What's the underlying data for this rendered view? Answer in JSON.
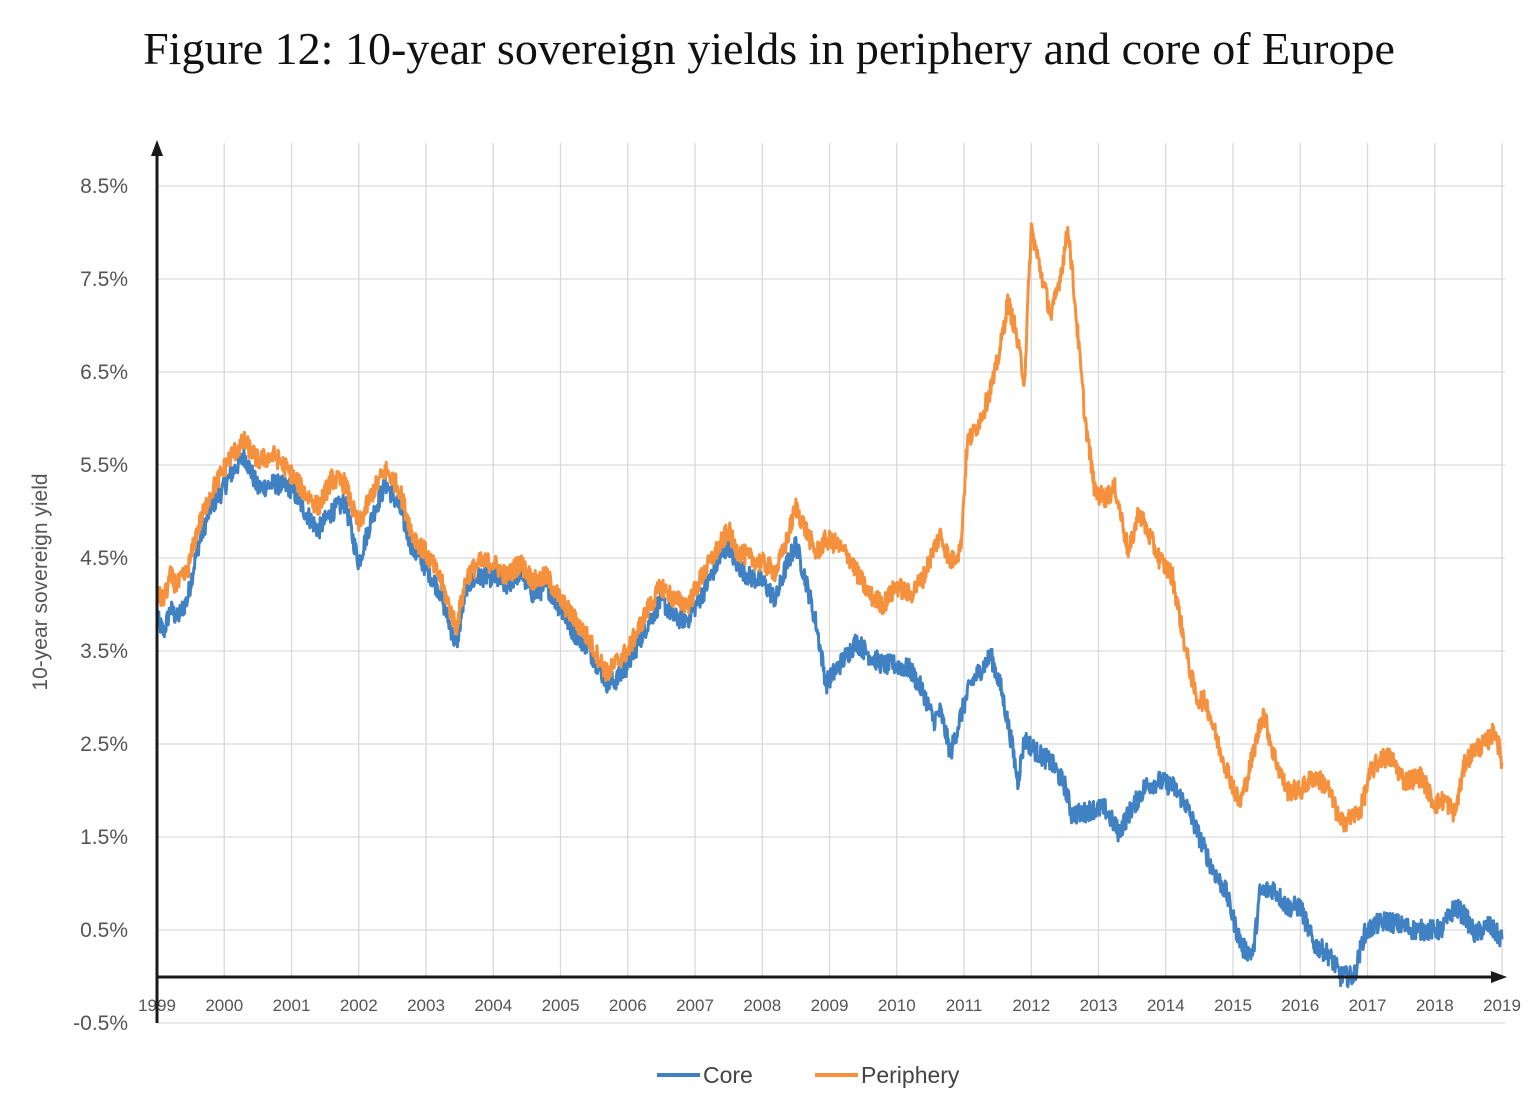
{
  "chart_data": {
    "type": "line",
    "title": "Figure 12:  10-year sovereign yields in periphery and core of Europe",
    "ylabel": "10-year sovereign yield",
    "xlabel": "",
    "xlim": [
      1999,
      2019
    ],
    "ylim": [
      -0.5,
      8.5
    ],
    "y_ticks": [
      "8.5%",
      "7.5%",
      "6.5%",
      "5.5%",
      "4.5%",
      "3.5%",
      "2.5%",
      "1.5%",
      "0.5%",
      "-0.5%"
    ],
    "x_ticks": [
      "1999",
      "2000",
      "2001",
      "2002",
      "2003",
      "2004",
      "2005",
      "2006",
      "2007",
      "2008",
      "2009",
      "2010",
      "2011",
      "2012",
      "2013",
      "2014",
      "2015",
      "2016",
      "2017",
      "2018",
      "2019"
    ],
    "grid": true,
    "legend": "bottom-center",
    "series": [
      {
        "name": "Core",
        "color": "#3F81C2",
        "x": [
          1999.0,
          1999.1,
          1999.2,
          1999.3,
          1999.45,
          1999.6,
          1999.8,
          1999.95,
          2000.1,
          2000.3,
          2000.5,
          2000.75,
          2001.0,
          2001.2,
          2001.4,
          2001.6,
          2001.8,
          2001.9,
          2002.0,
          2002.2,
          2002.4,
          2002.6,
          2002.8,
          2003.0,
          2003.2,
          2003.45,
          2003.6,
          2003.8,
          2004.0,
          2004.2,
          2004.4,
          2004.6,
          2004.8,
          2005.0,
          2005.2,
          2005.4,
          2005.7,
          2005.85,
          2006.0,
          2006.3,
          2006.5,
          2006.7,
          2006.9,
          2007.1,
          2007.3,
          2007.5,
          2007.6,
          2007.8,
          2008.0,
          2008.2,
          2008.35,
          2008.5,
          2008.65,
          2008.8,
          2008.95,
          2009.1,
          2009.3,
          2009.4,
          2009.6,
          2009.8,
          2010.0,
          2010.2,
          2010.4,
          2010.55,
          2010.65,
          2010.8,
          2010.95,
          2011.1,
          2011.25,
          2011.4,
          2011.55,
          2011.7,
          2011.8,
          2011.9,
          2012.1,
          2012.3,
          2012.5,
          2012.6,
          2012.75,
          2012.9,
          2013.1,
          2013.3,
          2013.45,
          2013.7,
          2013.9,
          2014.1,
          2014.3,
          2014.5,
          2014.7,
          2014.9,
          2015.05,
          2015.15,
          2015.3,
          2015.4,
          2015.6,
          2015.8,
          2016.0,
          2016.2,
          2016.4,
          2016.5,
          2016.6,
          2016.8,
          2016.95,
          2017.1,
          2017.3,
          2017.5,
          2017.7,
          2017.9,
          2018.1,
          2018.3,
          2018.45,
          2018.6,
          2018.8,
          2019.0
        ],
        "values": [
          3.85,
          3.7,
          3.95,
          3.85,
          4.05,
          4.6,
          5.05,
          5.2,
          5.4,
          5.6,
          5.25,
          5.3,
          5.25,
          5.0,
          4.8,
          5.0,
          5.1,
          4.75,
          4.45,
          4.95,
          5.3,
          5.05,
          4.6,
          4.4,
          4.15,
          3.55,
          4.2,
          4.3,
          4.3,
          4.2,
          4.35,
          4.1,
          4.2,
          3.95,
          3.7,
          3.55,
          3.15,
          3.2,
          3.35,
          3.8,
          4.05,
          3.85,
          3.85,
          4.1,
          4.4,
          4.65,
          4.45,
          4.3,
          4.25,
          4.05,
          4.4,
          4.65,
          4.25,
          3.8,
          3.15,
          3.3,
          3.5,
          3.6,
          3.45,
          3.35,
          3.35,
          3.3,
          3.05,
          2.75,
          2.85,
          2.4,
          2.8,
          3.15,
          3.3,
          3.45,
          3.1,
          2.55,
          2.1,
          2.55,
          2.4,
          2.3,
          2.05,
          1.75,
          1.75,
          1.8,
          1.8,
          1.55,
          1.75,
          2.05,
          2.1,
          2.05,
          1.85,
          1.5,
          1.15,
          0.9,
          0.5,
          0.3,
          0.25,
          0.9,
          0.95,
          0.75,
          0.75,
          0.35,
          0.25,
          0.15,
          0.0,
          0.0,
          0.45,
          0.55,
          0.6,
          0.55,
          0.5,
          0.5,
          0.5,
          0.75,
          0.65,
          0.45,
          0.55,
          0.4
        ]
      },
      {
        "name": "Periphery",
        "color": "#F5913D",
        "x": [
          1999.0,
          1999.1,
          1999.2,
          1999.3,
          1999.45,
          1999.6,
          1999.8,
          1999.95,
          2000.1,
          2000.3,
          2000.5,
          2000.75,
          2001.0,
          2001.2,
          2001.4,
          2001.6,
          2001.8,
          2001.9,
          2002.0,
          2002.2,
          2002.4,
          2002.6,
          2002.8,
          2003.0,
          2003.2,
          2003.45,
          2003.6,
          2003.8,
          2004.0,
          2004.2,
          2004.4,
          2004.6,
          2004.8,
          2005.0,
          2005.2,
          2005.4,
          2005.7,
          2005.85,
          2006.0,
          2006.3,
          2006.5,
          2006.7,
          2006.9,
          2007.1,
          2007.3,
          2007.5,
          2007.6,
          2007.8,
          2008.0,
          2008.2,
          2008.35,
          2008.5,
          2008.65,
          2008.8,
          2008.95,
          2009.1,
          2009.3,
          2009.4,
          2009.6,
          2009.8,
          2010.0,
          2010.2,
          2010.4,
          2010.55,
          2010.65,
          2010.8,
          2010.95,
          2011.05,
          2011.15,
          2011.3,
          2011.45,
          2011.55,
          2011.65,
          2011.75,
          2011.9,
          2012.0,
          2012.15,
          2012.3,
          2012.45,
          2012.55,
          2012.65,
          2012.8,
          2012.95,
          2013.1,
          2013.25,
          2013.35,
          2013.45,
          2013.6,
          2013.75,
          2013.9,
          2014.1,
          2014.3,
          2014.45,
          2014.6,
          2014.8,
          2014.95,
          2015.1,
          2015.2,
          2015.35,
          2015.45,
          2015.6,
          2015.8,
          2016.0,
          2016.2,
          2016.4,
          2016.6,
          2016.75,
          2016.9,
          2017.05,
          2017.2,
          2017.35,
          2017.55,
          2017.8,
          2018.0,
          2018.15,
          2018.3,
          2018.45,
          2018.6,
          2018.75,
          2018.9,
          2019.0
        ],
        "values": [
          4.1,
          4.05,
          4.3,
          4.2,
          4.35,
          4.8,
          5.2,
          5.4,
          5.6,
          5.75,
          5.55,
          5.6,
          5.4,
          5.2,
          5.05,
          5.35,
          5.3,
          5.05,
          4.85,
          5.2,
          5.45,
          5.25,
          4.75,
          4.55,
          4.3,
          3.75,
          4.3,
          4.45,
          4.45,
          4.3,
          4.45,
          4.25,
          4.3,
          4.05,
          3.85,
          3.65,
          3.25,
          3.4,
          3.5,
          3.95,
          4.2,
          4.05,
          4.0,
          4.3,
          4.55,
          4.8,
          4.6,
          4.5,
          4.45,
          4.35,
          4.65,
          5.05,
          4.8,
          4.55,
          4.7,
          4.65,
          4.5,
          4.35,
          4.1,
          4.0,
          4.2,
          4.1,
          4.3,
          4.6,
          4.75,
          4.45,
          4.6,
          5.75,
          5.85,
          6.1,
          6.45,
          6.8,
          7.25,
          7.0,
          6.4,
          8.05,
          7.55,
          7.1,
          7.6,
          8.05,
          7.25,
          6.0,
          5.2,
          5.15,
          5.25,
          4.9,
          4.55,
          5.0,
          4.75,
          4.5,
          4.3,
          3.5,
          3.0,
          2.95,
          2.45,
          2.15,
          1.85,
          2.1,
          2.55,
          2.85,
          2.4,
          2.0,
          2.0,
          2.15,
          2.05,
          1.65,
          1.7,
          1.8,
          2.2,
          2.35,
          2.35,
          2.1,
          2.15,
          1.85,
          1.9,
          1.75,
          2.3,
          2.45,
          2.5,
          2.65,
          2.3
        ]
      }
    ]
  }
}
